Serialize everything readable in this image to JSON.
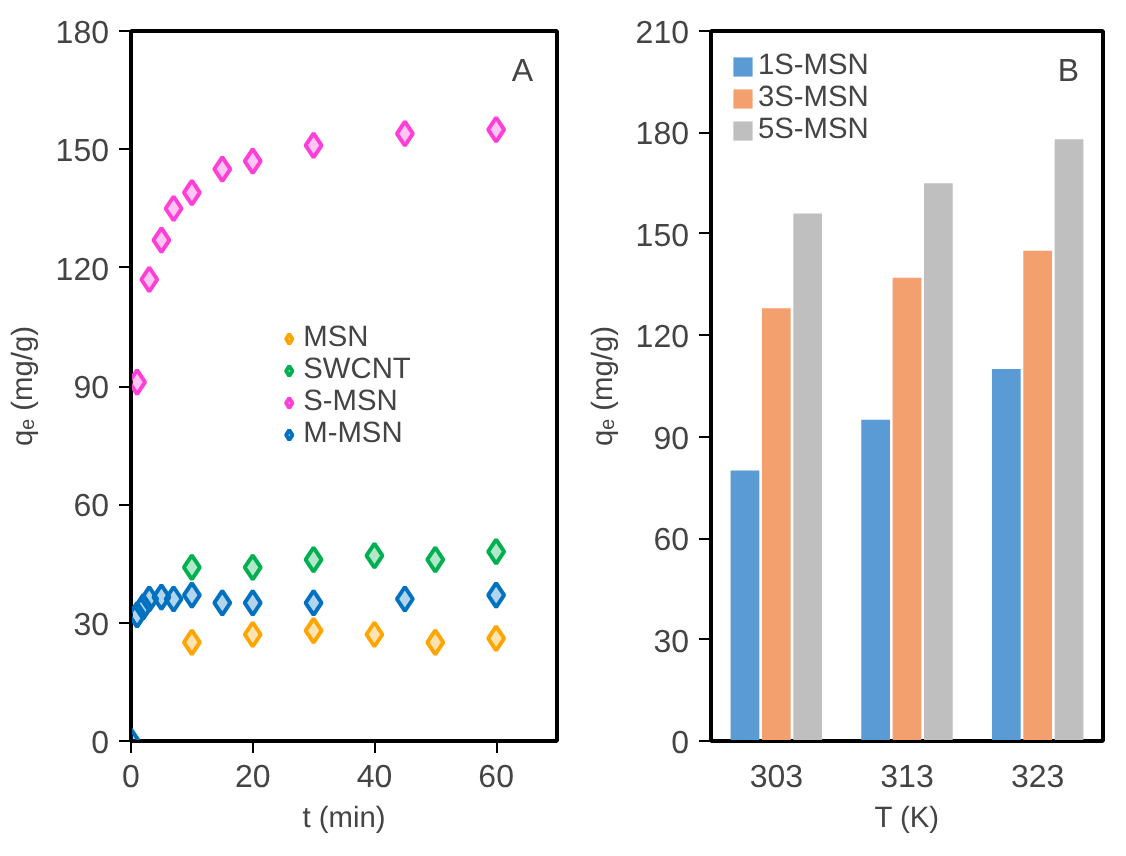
{
  "chart_data": [
    {
      "type": "scatter",
      "xlabel": "t (min)",
      "ylabel": "qₑ (mg/g)",
      "annotations": [
        "A"
      ],
      "xlim": [
        0,
        70
      ],
      "xticks": [
        0,
        20,
        40,
        60
      ],
      "ylim": [
        0,
        180
      ],
      "yticks": [
        0,
        30,
        60,
        90,
        120,
        150,
        180
      ],
      "grid": false,
      "legend": "center",
      "marker": "diamond",
      "series": [
        {
          "name": "MSN",
          "color": "#ffa500",
          "x": [
            10,
            20,
            30,
            40,
            50,
            60
          ],
          "values": [
            25,
            27,
            28,
            27,
            25,
            26
          ]
        },
        {
          "name": "SWCNT",
          "color": "#00b050",
          "x": [
            10,
            20,
            30,
            40,
            50,
            60
          ],
          "values": [
            44,
            44,
            46,
            47,
            46,
            48
          ]
        },
        {
          "name": "S-MSN",
          "color": "#ff3fd6",
          "x": [
            1,
            3,
            5,
            7,
            10,
            15,
            20,
            30,
            45,
            60
          ],
          "values": [
            91,
            117,
            127,
            135,
            139,
            145,
            147,
            151,
            154,
            155
          ]
        },
        {
          "name": "M-MSN",
          "color": "#0070c0",
          "x": [
            0,
            1,
            2,
            3,
            5,
            7,
            10,
            15,
            20,
            30,
            45,
            60
          ],
          "values": [
            0,
            32,
            34,
            36,
            36.5,
            36,
            37,
            35,
            35,
            35,
            36,
            37
          ]
        }
      ]
    },
    {
      "type": "bar",
      "xlabel": "T (K)",
      "ylabel": "qₑ (mg/g)",
      "annotations": [
        "B"
      ],
      "categories": [
        "303",
        "313",
        "323"
      ],
      "ylim": [
        0,
        210
      ],
      "yticks": [
        0,
        30,
        60,
        90,
        120,
        150,
        180,
        210
      ],
      "grid": false,
      "legend": "top left",
      "series": [
        {
          "name": "1S-MSN",
          "color": "#5b9bd5",
          "values": [
            80,
            95,
            110
          ]
        },
        {
          "name": "3S-MSN",
          "color": "#f4a06e",
          "values": [
            128,
            137,
            145
          ]
        },
        {
          "name": "5S-MSN",
          "color": "#bfbfbf",
          "values": [
            156,
            165,
            178
          ]
        }
      ]
    }
  ]
}
